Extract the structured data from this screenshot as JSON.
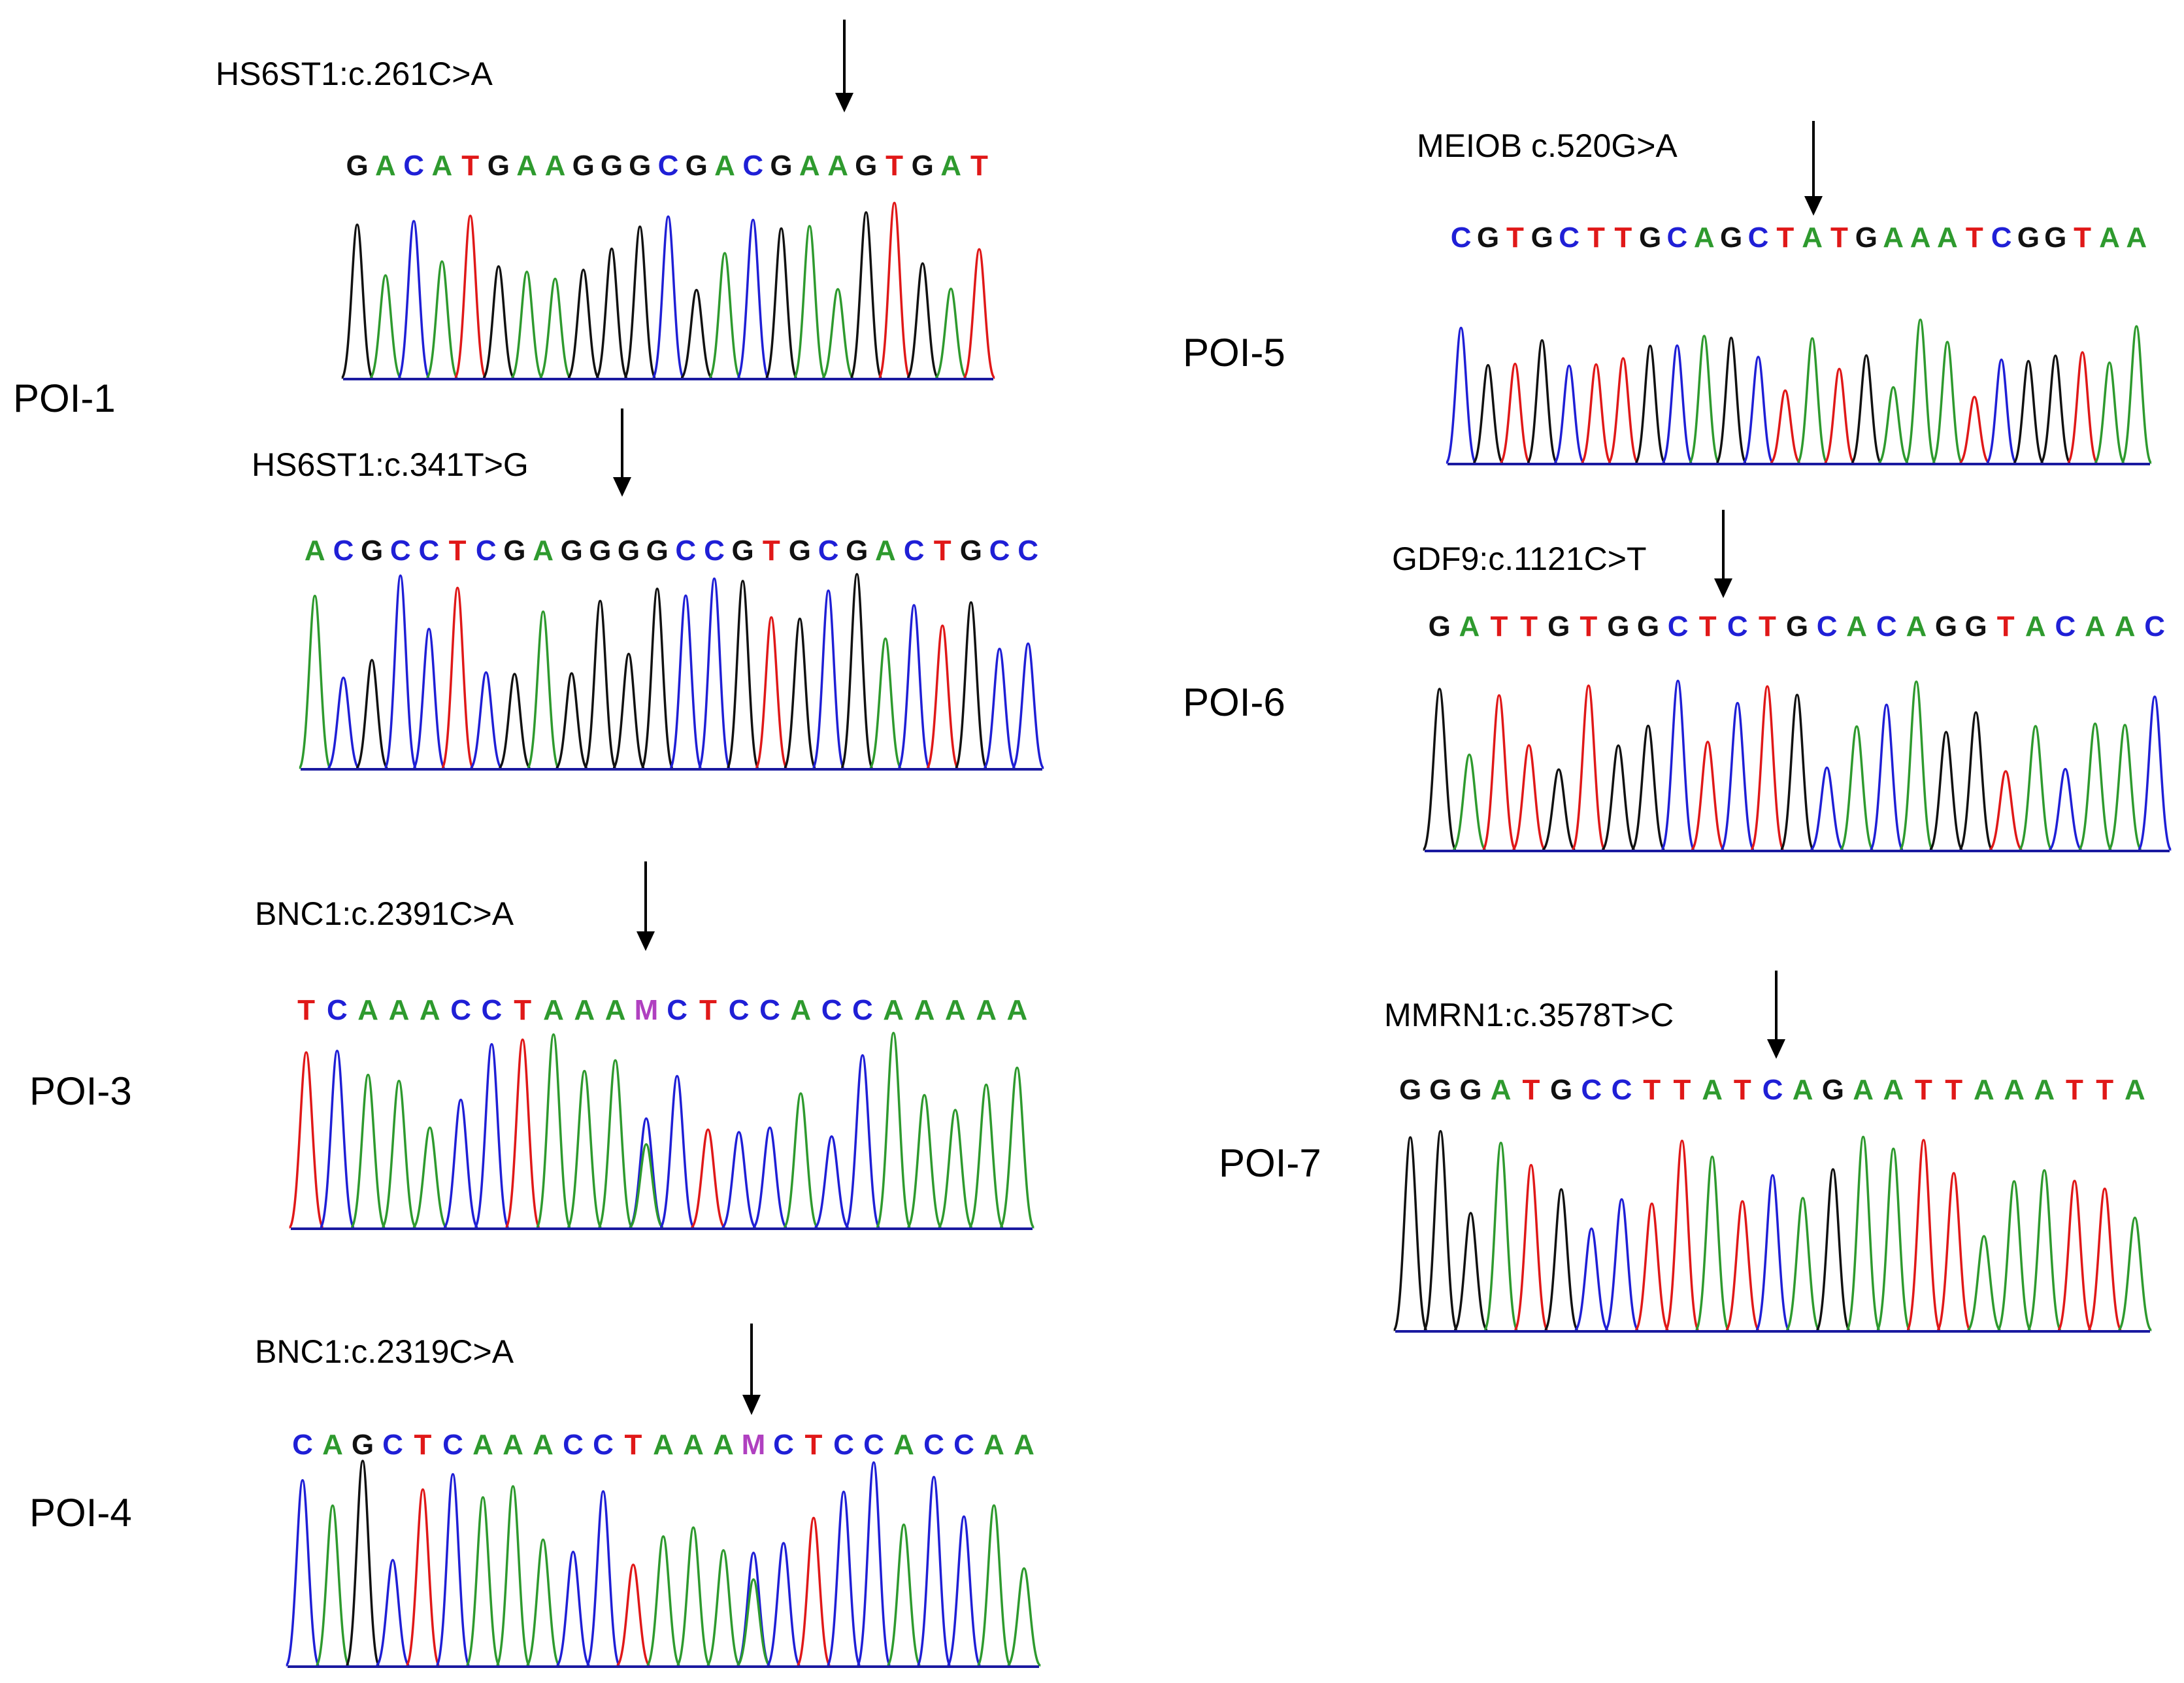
{
  "figure": {
    "patients": [
      {
        "label": "POI-1",
        "panels": [
          {
            "mutation": "HS6ST1:c.261C>A",
            "sequence": "GACATGAAGGGCGACGAAGTGAT",
            "het": -1,
            "arrowIndex": 15
          },
          {
            "mutation": "HS6ST1:c.341T>G",
            "sequence": "ACGCCTCGAGGGGCCGTGCGACTGCC",
            "het": -1,
            "arrowIndex": 8
          }
        ]
      },
      {
        "label": "POI-3",
        "panels": [
          {
            "mutation": "BNC1:c.2391C>A",
            "sequence": "TCAAACCTAAAMCTCCACCAAAAA",
            "het": 11,
            "arrowIndex": 11
          }
        ]
      },
      {
        "label": "POI-4",
        "panels": [
          {
            "mutation": "BNC1:c.2319C>A",
            "sequence": "CAGCTCAAACCTAAAMCTCCACCAA",
            "het": 15,
            "arrowIndex": 15
          }
        ]
      },
      {
        "label": "POI-5",
        "panels": [
          {
            "mutation": "MEIOB c.520G>A",
            "sequence": "CGTGCTTGCAGCTATGAAATCGGTAA",
            "het": -1,
            "arrowIndex": 12
          }
        ]
      },
      {
        "label": "POI-6",
        "panels": [
          {
            "mutation": "GDF9:c.1121C>T",
            "sequence": "GATTGTGGCTCTGCACAGGTACAAC",
            "het": -1,
            "arrowIndex": 9
          }
        ]
      },
      {
        "label": "POI-7",
        "panels": [
          {
            "mutation": "MMRN1:c.3578T>C",
            "sequence": "GGGATGCCTTATCAGAATTAAATTA",
            "het": -1,
            "arrowIndex": 12
          }
        ]
      }
    ],
    "baseColors": {
      "A": "#2e9a2e",
      "C": "#1f1fd6",
      "G": "#111111",
      "T": "#e01818",
      "M": "#b040c0"
    }
  }
}
